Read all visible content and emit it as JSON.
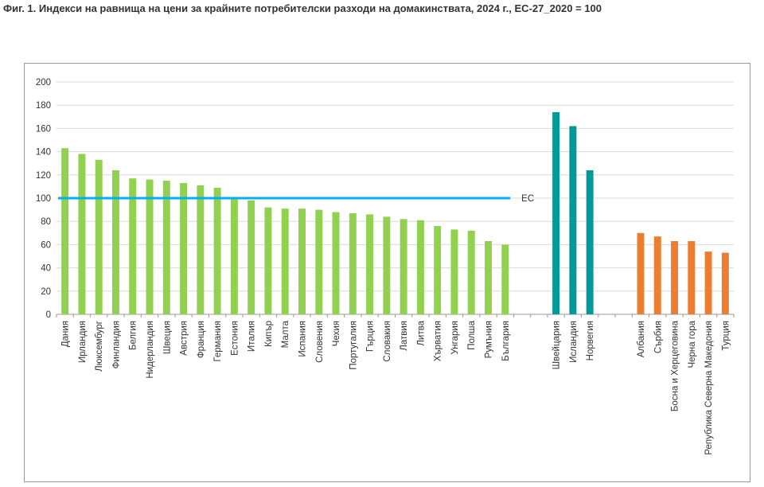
{
  "title": "Фиг. 1. Индекси на равнища на цени за крайните потребителски разходи на домакинствата, 2024 г., ЕС-27_2020 = 100",
  "chart_data": {
    "type": "bar",
    "ylim": [
      0,
      200
    ],
    "yticks": [
      0,
      20,
      40,
      60,
      80,
      100,
      120,
      140,
      160,
      180,
      200
    ],
    "grid": true,
    "colors": {
      "eu": "#92d050",
      "efta": "#009999",
      "candidates": "#ed7d31",
      "reference": "#00b0f0"
    },
    "reference_line": {
      "label": "ЕС",
      "value": 100
    },
    "groups": [
      {
        "color_key": "eu",
        "categories": [
          "Дания",
          "Ирландия",
          "Люксембург",
          "Финландия",
          "Белгия",
          "Нидерландия",
          "Швеция",
          "Австрия",
          "Франция",
          "Германия",
          "Естония",
          "Италия",
          "Кипър",
          "Малта",
          "Испания",
          "Словения",
          "Чехия",
          "Португалия",
          "Гърция",
          "Словакия",
          "Латвия",
          "Литва",
          "Хърватия",
          "Унгария",
          "Полша",
          "Румъния",
          "България"
        ],
        "values": [
          143,
          138,
          133,
          124,
          117,
          116,
          115,
          113,
          111,
          109,
          99,
          98,
          92,
          91,
          91,
          90,
          88,
          87,
          86,
          84,
          82,
          81,
          76,
          73,
          72,
          63,
          60
        ]
      },
      {
        "color_key": "efta",
        "categories": [
          "Швейцария",
          "Исландия",
          "Норвегия"
        ],
        "values": [
          174,
          162,
          124
        ]
      },
      {
        "color_key": "candidates",
        "categories": [
          "Албания",
          "Сърбия",
          "Босна и Херцеговина",
          "Черна гора",
          "Република Северна Македония",
          "Турция"
        ],
        "values": [
          70,
          67,
          63,
          63,
          54,
          53
        ]
      }
    ]
  }
}
